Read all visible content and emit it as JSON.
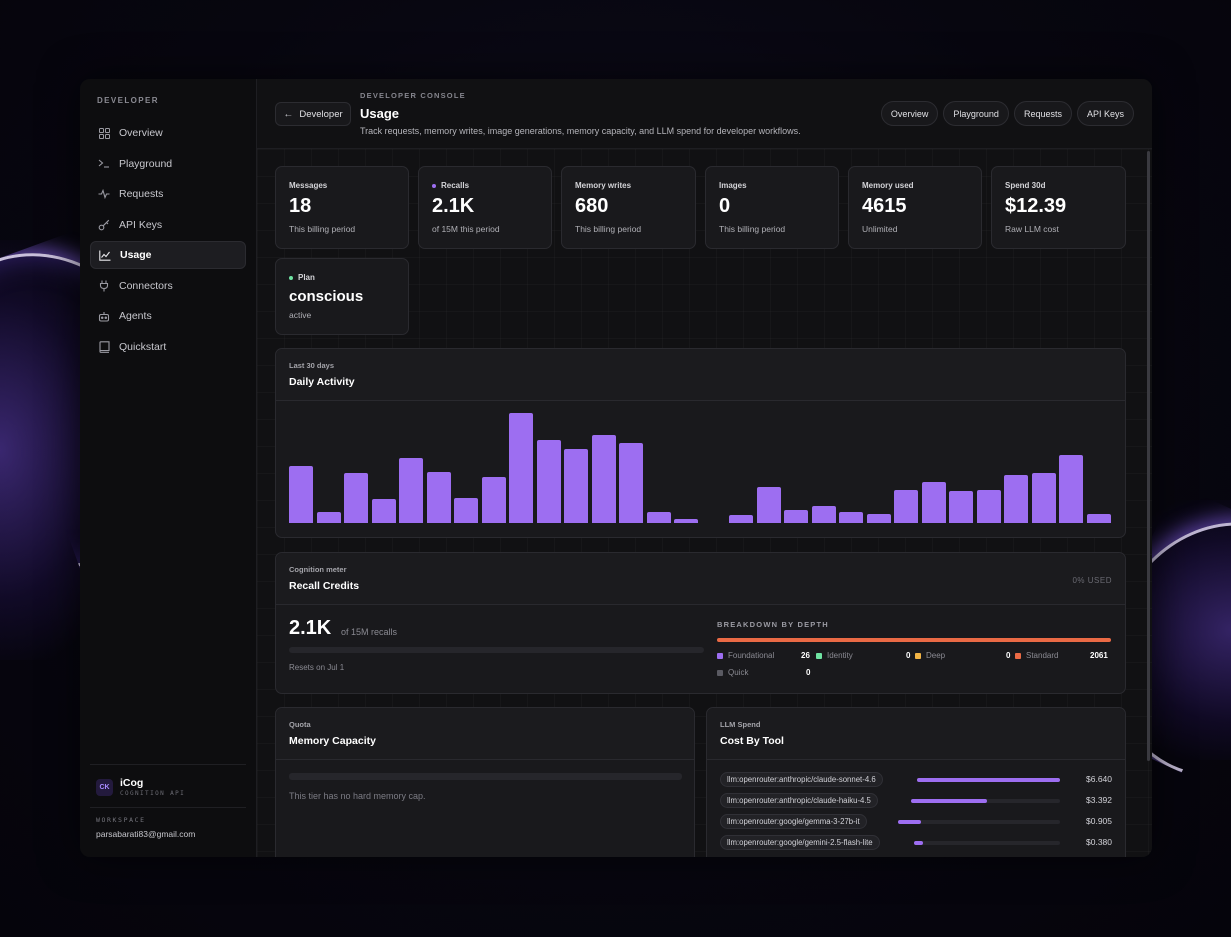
{
  "sidebar": {
    "heading": "DEVELOPER",
    "items": [
      {
        "label": "Overview",
        "icon": "grid-icon"
      },
      {
        "label": "Playground",
        "icon": "terminal-icon"
      },
      {
        "label": "Requests",
        "icon": "activity-icon"
      },
      {
        "label": "API Keys",
        "icon": "key-icon"
      },
      {
        "label": "Usage",
        "icon": "chart-icon",
        "active": true
      },
      {
        "label": "Connectors",
        "icon": "plug-icon"
      },
      {
        "label": "Agents",
        "icon": "bot-icon"
      },
      {
        "label": "Quickstart",
        "icon": "book-icon"
      }
    ],
    "brand": {
      "logo": "CK",
      "name": "iCog",
      "subtitle": "COGNITION API"
    },
    "workspace": {
      "label": "WORKSPACE",
      "email": "parsabarati83@gmail.com"
    }
  },
  "header": {
    "back_label": "Developer",
    "eyebrow": "DEVELOPER CONSOLE",
    "title": "Usage",
    "subtitle": "Track requests, memory writes, image generations, memory capacity, and LLM spend for developer workflows.",
    "tabs": [
      "Overview",
      "Playground",
      "Requests",
      "API Keys"
    ]
  },
  "stats": [
    {
      "label": "Messages",
      "value": "18",
      "sub": "This billing period"
    },
    {
      "label": "Recalls",
      "value": "2.1K",
      "sub": "of 15M this period",
      "dot": "#9d6ef1"
    },
    {
      "label": "Memory writes",
      "value": "680",
      "sub": "This billing period"
    },
    {
      "label": "Images",
      "value": "0",
      "sub": "This billing period"
    },
    {
      "label": "Memory used",
      "value": "4615",
      "sub": "Unlimited"
    },
    {
      "label": "Spend 30d",
      "value": "$12.39",
      "sub": "Raw LLM cost"
    },
    {
      "label": "Plan",
      "value": "conscious",
      "sub": "active",
      "dot": "#6fe3a2"
    }
  ],
  "daily_activity": {
    "eyebrow": "Last 30 days",
    "title": "Daily Activity",
    "accent": "#9d6ef1",
    "relative_values": [
      0.52,
      0.1,
      0.45,
      0.22,
      0.59,
      0.46,
      0.23,
      0.42,
      1.0,
      0.75,
      0.67,
      0.8,
      0.73,
      0.1,
      0.04,
      0,
      0.07,
      0.33,
      0.12,
      0.15,
      0.1,
      0.08,
      0.3,
      0.37,
      0.29,
      0.3,
      0.44,
      0.45,
      0.62,
      0.08
    ]
  },
  "recall_credits": {
    "eyebrow": "Cognition meter",
    "title": "Recall Credits",
    "used_label": "0% USED",
    "value": "2.1K",
    "of_label": "of 15M recalls",
    "resets": "Resets on Jul 1",
    "breakdown_title": "BREAKDOWN BY DEPTH",
    "breakdown": [
      {
        "label": "Foundational",
        "value": "26",
        "color": "#9d6ef1"
      },
      {
        "label": "Identity",
        "value": "0",
        "color": "#6fe3a2"
      },
      {
        "label": "Deep",
        "value": "0",
        "color": "#f2b445"
      },
      {
        "label": "Standard",
        "value": "2061",
        "color": "#ea6a45"
      },
      {
        "label": "Quick",
        "value": "0",
        "color": "#5a5a62"
      }
    ]
  },
  "memory_capacity": {
    "eyebrow": "Quota",
    "title": "Memory Capacity",
    "note": "This tier has no hard memory cap."
  },
  "llm_spend": {
    "eyebrow": "LLM Spend",
    "title": "Cost By Tool",
    "tools": [
      {
        "name": "llm:openrouter:anthropic/claude-sonnet-4.6",
        "cost": "$6.640",
        "share": 1.0
      },
      {
        "name": "llm:openrouter:anthropic/claude-haiku-4.5",
        "cost": "$3.392",
        "share": 0.51
      },
      {
        "name": "llm:openrouter:google/gemma-3-27b-it",
        "cost": "$0.905",
        "share": 0.14
      },
      {
        "name": "llm:openrouter:google/gemini-2.5-flash-lite",
        "cost": "$0.380",
        "share": 0.06
      }
    ]
  }
}
